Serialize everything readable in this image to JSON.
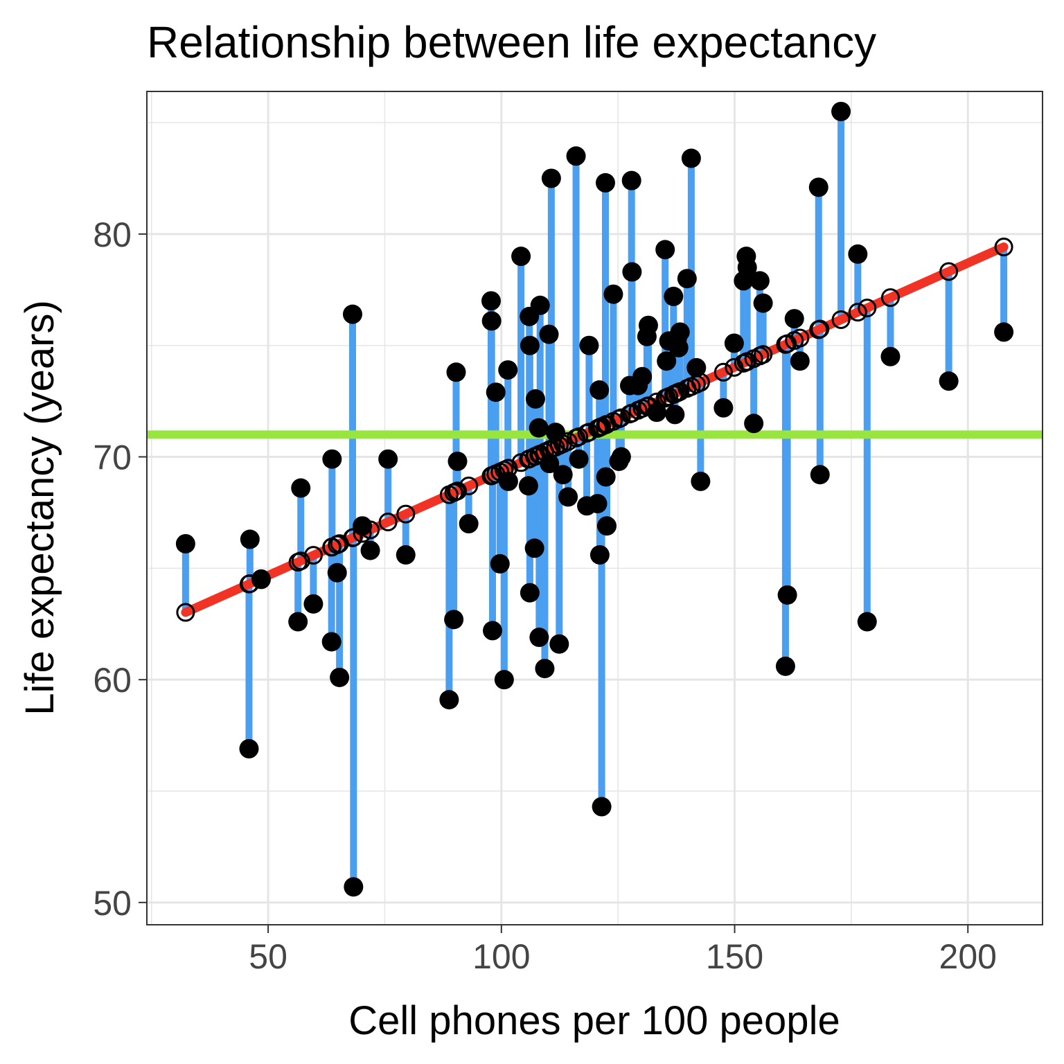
{
  "chart_data": {
    "type": "scatter",
    "title": "Relationship between life expectancy",
    "xlabel": "Cell phones per 100 people",
    "ylabel": "Life expectancy (years)",
    "xlim": [
      24,
      216
    ],
    "ylim": [
      49.0,
      86.4
    ],
    "x_ticks": [
      50,
      100,
      150,
      200
    ],
    "y_ticks": [
      50,
      60,
      70,
      80
    ],
    "grid": true,
    "legend": "none",
    "colors": {
      "points": "#000000",
      "residuals": "#4a9ff0",
      "fit_line": "#f03324",
      "mean_line": "#99e540",
      "grid": "#e5e5e5",
      "panel_border": "#333333"
    },
    "mean_y": 71.0,
    "fit": {
      "intercept": 60.0,
      "slope": 0.0935
    },
    "points": [
      {
        "x": 32.3,
        "y": 66.1
      },
      {
        "x": 45.9,
        "y": 56.9
      },
      {
        "x": 46.1,
        "y": 66.3
      },
      {
        "x": 48.5,
        "y": 64.5
      },
      {
        "x": 56.4,
        "y": 62.6
      },
      {
        "x": 57.0,
        "y": 68.6
      },
      {
        "x": 59.7,
        "y": 63.4
      },
      {
        "x": 63.6,
        "y": 61.7
      },
      {
        "x": 63.7,
        "y": 69.9
      },
      {
        "x": 64.8,
        "y": 64.8
      },
      {
        "x": 65.3,
        "y": 60.1
      },
      {
        "x": 68.1,
        "y": 76.4
      },
      {
        "x": 68.3,
        "y": 50.7
      },
      {
        "x": 70.2,
        "y": 66.9
      },
      {
        "x": 71.9,
        "y": 65.8
      },
      {
        "x": 75.7,
        "y": 69.9
      },
      {
        "x": 79.5,
        "y": 65.6
      },
      {
        "x": 88.8,
        "y": 59.1
      },
      {
        "x": 89.8,
        "y": 62.7
      },
      {
        "x": 90.3,
        "y": 73.8
      },
      {
        "x": 90.6,
        "y": 69.8
      },
      {
        "x": 93.0,
        "y": 67.0
      },
      {
        "x": 97.8,
        "y": 77.0
      },
      {
        "x": 97.9,
        "y": 76.1
      },
      {
        "x": 98.1,
        "y": 62.2
      },
      {
        "x": 98.8,
        "y": 72.9
      },
      {
        "x": 99.7,
        "y": 65.2
      },
      {
        "x": 100.6,
        "y": 60.0
      },
      {
        "x": 101.4,
        "y": 73.9
      },
      {
        "x": 101.5,
        "y": 68.9
      },
      {
        "x": 104.2,
        "y": 79.0
      },
      {
        "x": 105.8,
        "y": 68.7
      },
      {
        "x": 106.0,
        "y": 76.3
      },
      {
        "x": 106.1,
        "y": 75.0
      },
      {
        "x": 106.1,
        "y": 63.9
      },
      {
        "x": 107.1,
        "y": 65.9
      },
      {
        "x": 107.3,
        "y": 72.6
      },
      {
        "x": 108.0,
        "y": 71.3
      },
      {
        "x": 108.1,
        "y": 61.9
      },
      {
        "x": 108.3,
        "y": 76.8
      },
      {
        "x": 109.3,
        "y": 60.5
      },
      {
        "x": 110.2,
        "y": 75.5
      },
      {
        "x": 110.3,
        "y": 69.7
      },
      {
        "x": 110.7,
        "y": 82.5
      },
      {
        "x": 111.6,
        "y": 71.1
      },
      {
        "x": 112.4,
        "y": 61.6
      },
      {
        "x": 113.2,
        "y": 69.2
      },
      {
        "x": 114.3,
        "y": 68.2
      },
      {
        "x": 116.0,
        "y": 83.5
      },
      {
        "x": 116.6,
        "y": 69.9
      },
      {
        "x": 118.3,
        "y": 67.8
      },
      {
        "x": 118.8,
        "y": 75.0
      },
      {
        "x": 120.6,
        "y": 67.9
      },
      {
        "x": 121.0,
        "y": 73.0
      },
      {
        "x": 121.1,
        "y": 65.6
      },
      {
        "x": 121.5,
        "y": 54.3
      },
      {
        "x": 122.3,
        "y": 82.3
      },
      {
        "x": 122.4,
        "y": 69.1
      },
      {
        "x": 122.6,
        "y": 66.9
      },
      {
        "x": 124.0,
        "y": 77.3
      },
      {
        "x": 125.2,
        "y": 69.8
      },
      {
        "x": 125.7,
        "y": 70.0
      },
      {
        "x": 127.5,
        "y": 73.2
      },
      {
        "x": 127.9,
        "y": 82.4
      },
      {
        "x": 128.0,
        "y": 78.3
      },
      {
        "x": 129.3,
        "y": 73.2
      },
      {
        "x": 130.2,
        "y": 73.6
      },
      {
        "x": 131.2,
        "y": 75.4
      },
      {
        "x": 131.5,
        "y": 75.9
      },
      {
        "x": 133.3,
        "y": 72.0
      },
      {
        "x": 135.1,
        "y": 79.3
      },
      {
        "x": 135.4,
        "y": 74.3
      },
      {
        "x": 135.9,
        "y": 75.2
      },
      {
        "x": 136.9,
        "y": 77.2
      },
      {
        "x": 137.2,
        "y": 71.9
      },
      {
        "x": 137.7,
        "y": 75.3
      },
      {
        "x": 138.0,
        "y": 74.9
      },
      {
        "x": 138.3,
        "y": 75.6
      },
      {
        "x": 139.8,
        "y": 78.0
      },
      {
        "x": 140.7,
        "y": 83.4
      },
      {
        "x": 141.8,
        "y": 74.0
      },
      {
        "x": 142.7,
        "y": 68.9
      },
      {
        "x": 147.6,
        "y": 72.2
      },
      {
        "x": 149.9,
        "y": 75.1
      },
      {
        "x": 151.9,
        "y": 77.9
      },
      {
        "x": 152.5,
        "y": 79.0
      },
      {
        "x": 152.7,
        "y": 78.5
      },
      {
        "x": 154.1,
        "y": 71.5
      },
      {
        "x": 155.4,
        "y": 77.9
      },
      {
        "x": 156.1,
        "y": 76.9
      },
      {
        "x": 160.9,
        "y": 60.6
      },
      {
        "x": 161.3,
        "y": 63.8
      },
      {
        "x": 162.8,
        "y": 76.2
      },
      {
        "x": 164.0,
        "y": 74.3
      },
      {
        "x": 168.0,
        "y": 82.1
      },
      {
        "x": 168.3,
        "y": 69.2
      },
      {
        "x": 172.8,
        "y": 85.5
      },
      {
        "x": 176.4,
        "y": 79.1
      },
      {
        "x": 178.4,
        "y": 62.6
      },
      {
        "x": 183.4,
        "y": 74.5
      },
      {
        "x": 195.9,
        "y": 73.4
      },
      {
        "x": 207.7,
        "y": 75.6
      }
    ]
  }
}
